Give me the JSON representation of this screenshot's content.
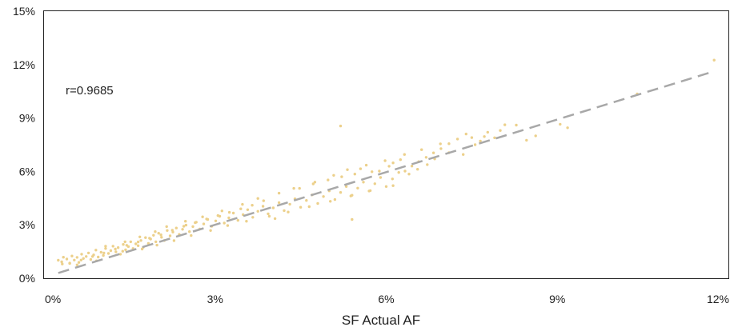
{
  "chart_data": {
    "type": "scatter",
    "title": "",
    "xlabel": "SF Actual AF",
    "ylabel": "",
    "xlim": [
      0,
      0.12
    ],
    "ylim": [
      0,
      0.15
    ],
    "x_ticks": [
      0,
      0.03,
      0.06,
      0.09,
      0.12
    ],
    "x_tick_labels": [
      "0%",
      "3%",
      "6%",
      "9%",
      "12%"
    ],
    "y_ticks": [
      0,
      0.03,
      0.06,
      0.09,
      0.12,
      0.15
    ],
    "y_tick_labels": [
      "0%",
      "3%",
      "6%",
      "9%",
      "12%",
      "15%"
    ],
    "grid": false,
    "legend": "none",
    "annotation": "r=0.9685",
    "point_color": "#ecd08b",
    "trendline": {
      "style": "dashed",
      "color": "#a8a8a8",
      "slope": 0.985,
      "intercept": 0.0005
    },
    "series": [
      {
        "values": [
          [
            0.0025,
            0.0101
          ],
          [
            0.0031,
            0.0092
          ],
          [
            0.0034,
            0.0118
          ],
          [
            0.004,
            0.0108
          ],
          [
            0.0045,
            0.0085
          ],
          [
            0.0049,
            0.0125
          ],
          [
            0.0053,
            0.0102
          ],
          [
            0.0058,
            0.0117
          ],
          [
            0.0061,
            0.0089
          ],
          [
            0.0066,
            0.0135
          ],
          [
            0.0069,
            0.0111
          ],
          [
            0.0074,
            0.0122
          ],
          [
            0.0078,
            0.0142
          ],
          [
            0.0082,
            0.0105
          ],
          [
            0.0087,
            0.0131
          ],
          [
            0.0091,
            0.0158
          ],
          [
            0.0095,
            0.0119
          ],
          [
            0.01,
            0.0146
          ],
          [
            0.0104,
            0.0128
          ],
          [
            0.0108,
            0.0167
          ],
          [
            0.0113,
            0.0139
          ],
          [
            0.0117,
            0.0155
          ],
          [
            0.0121,
            0.018
          ],
          [
            0.0126,
            0.0148
          ],
          [
            0.013,
            0.0172
          ],
          [
            0.0134,
            0.0135
          ],
          [
            0.0139,
            0.019
          ],
          [
            0.0143,
            0.016
          ],
          [
            0.0148,
            0.0178
          ],
          [
            0.0152,
            0.0205
          ],
          [
            0.0156,
            0.0167
          ],
          [
            0.0161,
            0.0193
          ],
          [
            0.0165,
            0.0183
          ],
          [
            0.017,
            0.0212
          ],
          [
            0.0174,
            0.0174
          ],
          [
            0.0178,
            0.0228
          ],
          [
            0.0183,
            0.0196
          ],
          [
            0.0187,
            0.022
          ],
          [
            0.0192,
            0.0241
          ],
          [
            0.0196,
            0.0205
          ],
          [
            0.0201,
            0.0253
          ],
          [
            0.0206,
            0.023
          ],
          [
            0.0211,
            0.0212
          ],
          [
            0.0216,
            0.0268
          ],
          [
            0.0221,
            0.0238
          ],
          [
            0.0226,
            0.0259
          ],
          [
            0.0232,
            0.0282
          ],
          [
            0.0237,
            0.0246
          ],
          [
            0.0243,
            0.0275
          ],
          [
            0.0249,
            0.0298
          ],
          [
            0.0255,
            0.0262
          ],
          [
            0.0261,
            0.029
          ],
          [
            0.0267,
            0.0315
          ],
          [
            0.0273,
            0.0276
          ],
          [
            0.028,
            0.0305
          ],
          [
            0.0287,
            0.033
          ],
          [
            0.0294,
            0.0292
          ],
          [
            0.0301,
            0.0322
          ],
          [
            0.0308,
            0.0348
          ],
          [
            0.0316,
            0.031
          ],
          [
            0.0324,
            0.0339
          ],
          [
            0.0332,
            0.0366
          ],
          [
            0.034,
            0.0325
          ],
          [
            0.0349,
            0.0357
          ],
          [
            0.0357,
            0.0385
          ],
          [
            0.0366,
            0.0342
          ],
          [
            0.0375,
            0.0376
          ],
          [
            0.0384,
            0.0404
          ],
          [
            0.0393,
            0.0362
          ],
          [
            0.0402,
            0.0395
          ],
          [
            0.0412,
            0.0425
          ],
          [
            0.0421,
            0.038
          ],
          [
            0.0431,
            0.0416
          ],
          [
            0.044,
            0.0446
          ],
          [
            0.045,
            0.0399
          ],
          [
            0.046,
            0.0437
          ],
          [
            0.047,
            0.0468
          ],
          [
            0.048,
            0.042
          ],
          [
            0.049,
            0.0459
          ],
          [
            0.05,
            0.0491
          ],
          [
            0.051,
            0.0442
          ],
          [
            0.052,
            0.0482
          ],
          [
            0.053,
            0.0515
          ],
          [
            0.054,
            0.0466
          ],
          [
            0.055,
            0.0506
          ],
          [
            0.056,
            0.054
          ],
          [
            0.057,
            0.049
          ],
          [
            0.058,
            0.0531
          ],
          [
            0.059,
            0.0566
          ],
          [
            0.06,
            0.0515
          ],
          [
            0.0611,
            0.0558
          ],
          [
            0.0622,
            0.0594
          ],
          [
            0.0633,
            0.0602
          ],
          [
            0.0645,
            0.063
          ],
          [
            0.0657,
            0.0655
          ],
          [
            0.067,
            0.0679
          ],
          [
            0.0683,
            0.0704
          ],
          [
            0.0696,
            0.0728
          ],
          [
            0.071,
            0.0756
          ],
          [
            0.0725,
            0.0782
          ],
          [
            0.074,
            0.081
          ],
          [
            0.0756,
            0.075
          ],
          [
            0.0772,
            0.0796
          ],
          [
            0.079,
            0.0789
          ],
          [
            0.0808,
            0.0862
          ],
          [
            0.0828,
            0.086
          ],
          [
            0.0846,
            0.0775
          ],
          [
            0.0862,
            0.08
          ],
          [
            0.0905,
            0.0865
          ],
          [
            0.0918,
            0.0845
          ],
          [
            0.104,
            0.1035
          ],
          [
            0.1175,
            0.1225
          ],
          [
            0.052,
            0.0855
          ],
          [
            0.054,
            0.033
          ],
          [
            0.0405,
            0.0335
          ],
          [
            0.064,
            0.0585
          ],
          [
            0.0672,
            0.0638
          ],
          [
            0.0588,
            0.0602
          ],
          [
            0.0612,
            0.0648
          ],
          [
            0.0555,
            0.0615
          ],
          [
            0.0498,
            0.0552
          ],
          [
            0.0472,
            0.053
          ],
          [
            0.0448,
            0.0505
          ],
          [
            0.0522,
            0.057
          ],
          [
            0.0545,
            0.0585
          ],
          [
            0.0575,
            0.0598
          ],
          [
            0.0605,
            0.0629
          ],
          [
            0.0625,
            0.0666
          ],
          [
            0.0655,
            0.0612
          ],
          [
            0.0685,
            0.067
          ],
          [
            0.071,
            0.0705
          ],
          [
            0.0735,
            0.0695
          ],
          [
            0.0765,
            0.077
          ],
          [
            0.08,
            0.083
          ],
          [
            0.0385,
            0.0435
          ],
          [
            0.0365,
            0.041
          ],
          [
            0.0345,
            0.039
          ],
          [
            0.0325,
            0.037
          ],
          [
            0.0305,
            0.0352
          ],
          [
            0.0285,
            0.0333
          ],
          [
            0.0265,
            0.0312
          ],
          [
            0.0245,
            0.0292
          ],
          [
            0.0225,
            0.027
          ],
          [
            0.0205,
            0.0244
          ],
          [
            0.0185,
            0.0225
          ],
          [
            0.0165,
            0.0204
          ],
          [
            0.0145,
            0.0185
          ],
          [
            0.0125,
            0.0164
          ],
          [
            0.0105,
            0.0142
          ],
          [
            0.0085,
            0.0122
          ],
          [
            0.0065,
            0.0102
          ],
          [
            0.0045,
            0.0083
          ],
          [
            0.0032,
            0.008
          ],
          [
            0.0058,
            0.0075
          ],
          [
            0.0092,
            0.0098
          ],
          [
            0.0138,
            0.0152
          ],
          [
            0.0172,
            0.0164
          ],
          [
            0.0198,
            0.0186
          ],
          [
            0.0228,
            0.0211
          ],
          [
            0.0258,
            0.024
          ],
          [
            0.0292,
            0.0268
          ],
          [
            0.0322,
            0.0296
          ],
          [
            0.0355,
            0.032
          ],
          [
            0.0395,
            0.0348
          ],
          [
            0.0428,
            0.0372
          ],
          [
            0.0465,
            0.0402
          ],
          [
            0.0502,
            0.0432
          ],
          [
            0.0538,
            0.0462
          ],
          [
            0.0572,
            0.0492
          ],
          [
            0.0612,
            0.052
          ],
          [
            0.0108,
            0.018
          ],
          [
            0.0142,
            0.0205
          ],
          [
            0.0168,
            0.0232
          ],
          [
            0.0195,
            0.0262
          ],
          [
            0.0215,
            0.029
          ],
          [
            0.0248,
            0.032
          ],
          [
            0.0278,
            0.0345
          ],
          [
            0.0312,
            0.0378
          ],
          [
            0.0348,
            0.0415
          ],
          [
            0.0375,
            0.0448
          ],
          [
            0.0412,
            0.0478
          ],
          [
            0.0438,
            0.0505
          ],
          [
            0.0475,
            0.054
          ],
          [
            0.0508,
            0.0578
          ],
          [
            0.0532,
            0.061
          ],
          [
            0.0565,
            0.0635
          ],
          [
            0.0598,
            0.066
          ],
          [
            0.0632,
            0.0695
          ],
          [
            0.0662,
            0.0722
          ],
          [
            0.0695,
            0.0755
          ],
          [
            0.075,
            0.079
          ],
          [
            0.0778,
            0.082
          ]
        ]
      }
    ]
  }
}
